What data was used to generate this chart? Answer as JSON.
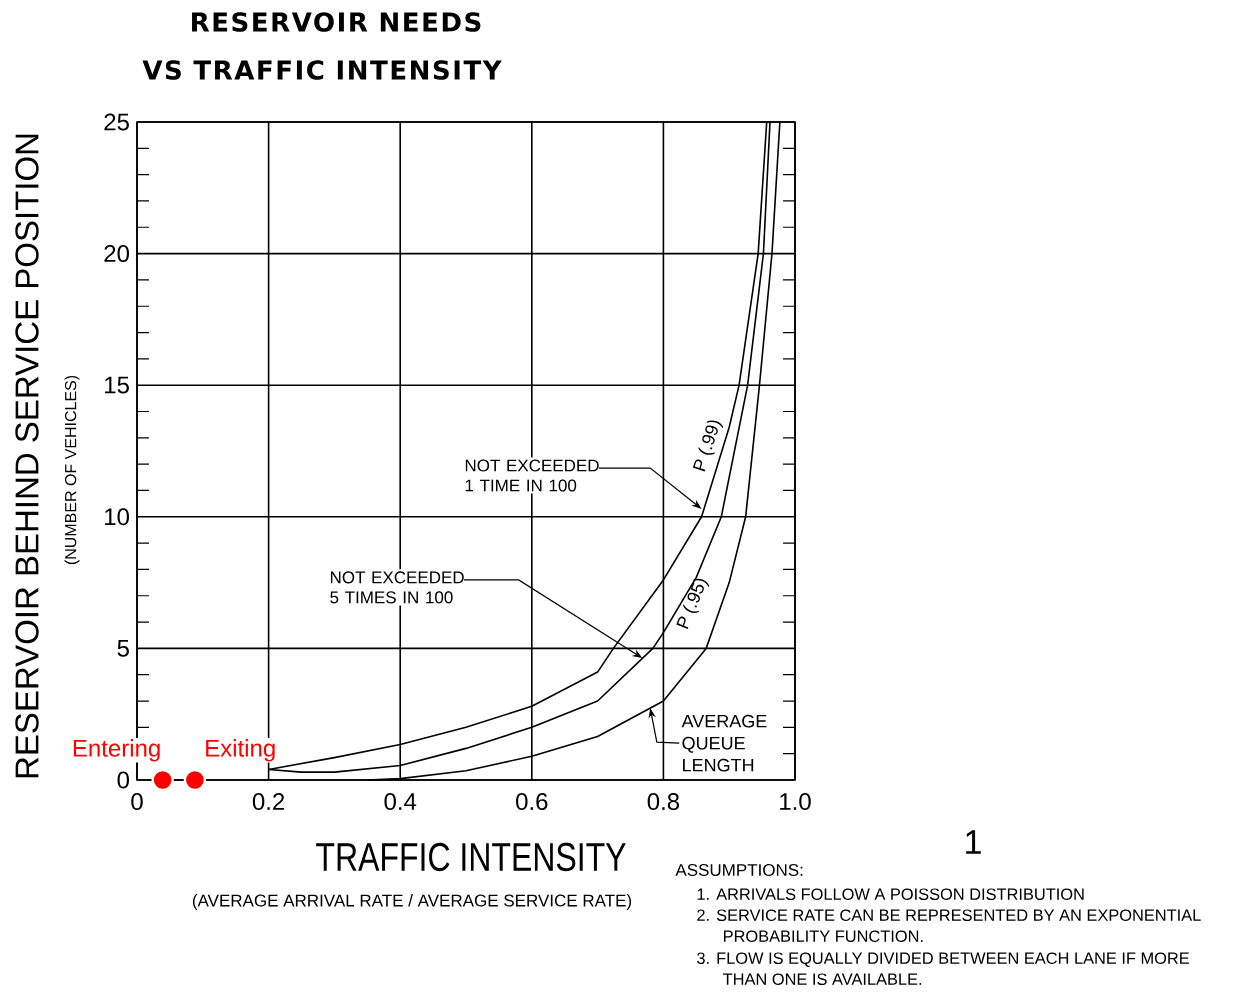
{
  "chart_data": {
    "type": "line",
    "title": "RESERVOIR NEEDS",
    "subtitle": "VS TRAFFIC INTENSITY",
    "xlabel": "TRAFFIC INTENSITY",
    "ylabel": "RESERVOIR BEHIND SERVICE POSITION",
    "xlim": [
      0,
      1
    ],
    "ylim": [
      0,
      25
    ],
    "xticks": [
      0,
      0.2,
      0.4,
      0.6,
      0.8,
      {
        "value": 1,
        "label": "1.0"
      }
    ],
    "yticks": [
      0,
      5,
      10,
      15,
      20,
      25
    ],
    "grid": true,
    "legend": false,
    "marker": "none",
    "line_style": "solid",
    "series": [
      {
        "name": "P (.99)",
        "color": "#000000",
        "x": [
          0.2,
          0.3,
          0.4,
          0.5,
          0.6,
          0.7,
          0.724,
          0.8,
          0.858,
          0.9,
          0.915,
          0.944,
          0.957
        ],
        "values": [
          0.4,
          0.85,
          1.35,
          2.0,
          2.8,
          4.1,
          5,
          7.6,
          10,
          13.4,
          15,
          20,
          25
        ]
      },
      {
        "name": "P (.95)",
        "color": "#000000",
        "x": [
          0.2,
          0.25,
          0.3,
          0.4,
          0.5,
          0.6,
          0.7,
          0.784,
          0.8,
          0.85,
          0.888,
          0.928,
          0.952,
          0.962
        ],
        "values": [
          0.4,
          0.3,
          0.3,
          0.55,
          1.2,
          2.0,
          3.0,
          5,
          5.6,
          7.7,
          10,
          15,
          20,
          25
        ]
      },
      {
        "color": "#000000",
        "x": [
          0.35,
          0.4,
          0.5,
          0.6,
          0.7,
          0.8,
          0.865,
          0.9,
          0.925,
          0.946,
          0.965,
          0.977
        ],
        "values": [
          0,
          0.05,
          0.35,
          0.9,
          1.65,
          3.0,
          5,
          7.5,
          10,
          15,
          20,
          25
        ]
      },
      {
        "type": "scatter",
        "marker": "circle",
        "color": "#ff0000",
        "x": [
          0.039,
          0.088
        ],
        "values": [
          0,
          0
        ]
      }
    ],
    "annotations": [
      "(NUMBER OF VEHICLES)",
      "(AVERAGE ARRIVAL RATE / AVERAGE SERVICE RATE)",
      "1",
      "ASSUMPTIONS:",
      "1. ARRIVALS FOLLOW A POISSON DISTRIBUTION",
      "2. SERVICE RATE CAN BE REPRESENTED BY AN EXPONENTIAL PROBABILITY FUNCTION.",
      "3. FLOW IS EQUALLY DIVIDED BETWEEN EACH LANE IF MORE THAN ONE IS AVAILABLE.",
      {
        "text": "NOT EXCEEDED 1 TIME IN 100",
        "x": 0.858,
        "y": 10.3
      },
      {
        "text": "NOT EXCEEDED 5 TIMES IN 100",
        "x": 0.768,
        "y": 4.63
      },
      {
        "text": "AVERAGE QUEUE LENGTH",
        "x": 0.78,
        "y": 2.73
      },
      {
        "text": "Entering",
        "x": 0.039,
        "y": 0
      },
      {
        "text": "Exiting",
        "x": 0.088,
        "y": 0
      }
    ]
  }
}
